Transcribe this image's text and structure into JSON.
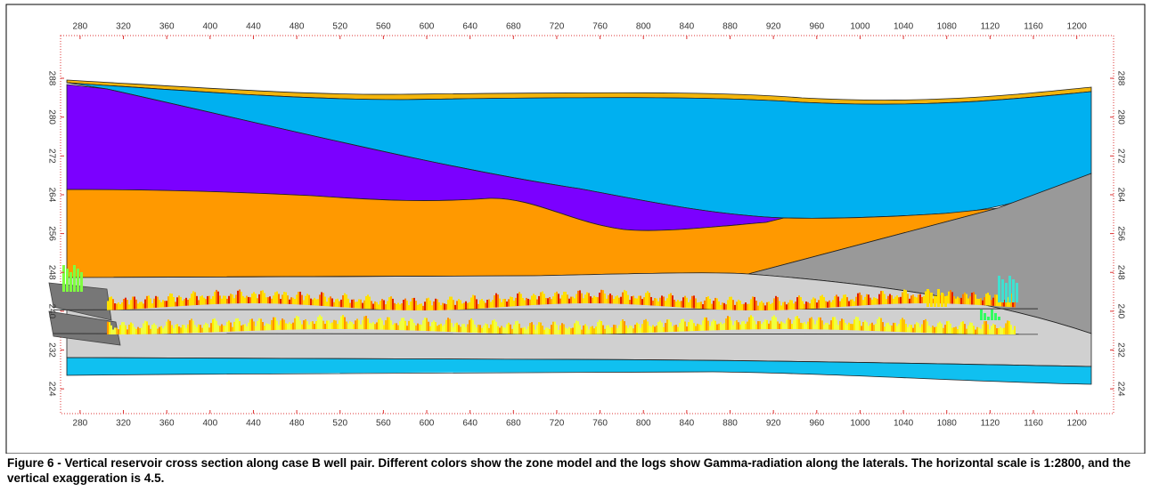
{
  "chart_data": {
    "type": "cross-section",
    "xlim": [
      262,
      1234
    ],
    "ylim": [
      218.9,
      296.8
    ],
    "xticks": [
      280,
      320,
      360,
      400,
      440,
      480,
      520,
      560,
      600,
      640,
      680,
      720,
      760,
      800,
      840,
      880,
      920,
      960,
      1000,
      1040,
      1080,
      1120,
      1160,
      1200
    ],
    "yticks": [
      224,
      232,
      240,
      248,
      256,
      264,
      272,
      280,
      288
    ],
    "caption": "Figure 6 - Vertical reservoir cross section along case B well pair. Different colors show the zone model and the logs show Gamma-radiation along the laterals. The horizontal scale is 1:2800, and the vertical exaggeration is 4.5."
  }
}
